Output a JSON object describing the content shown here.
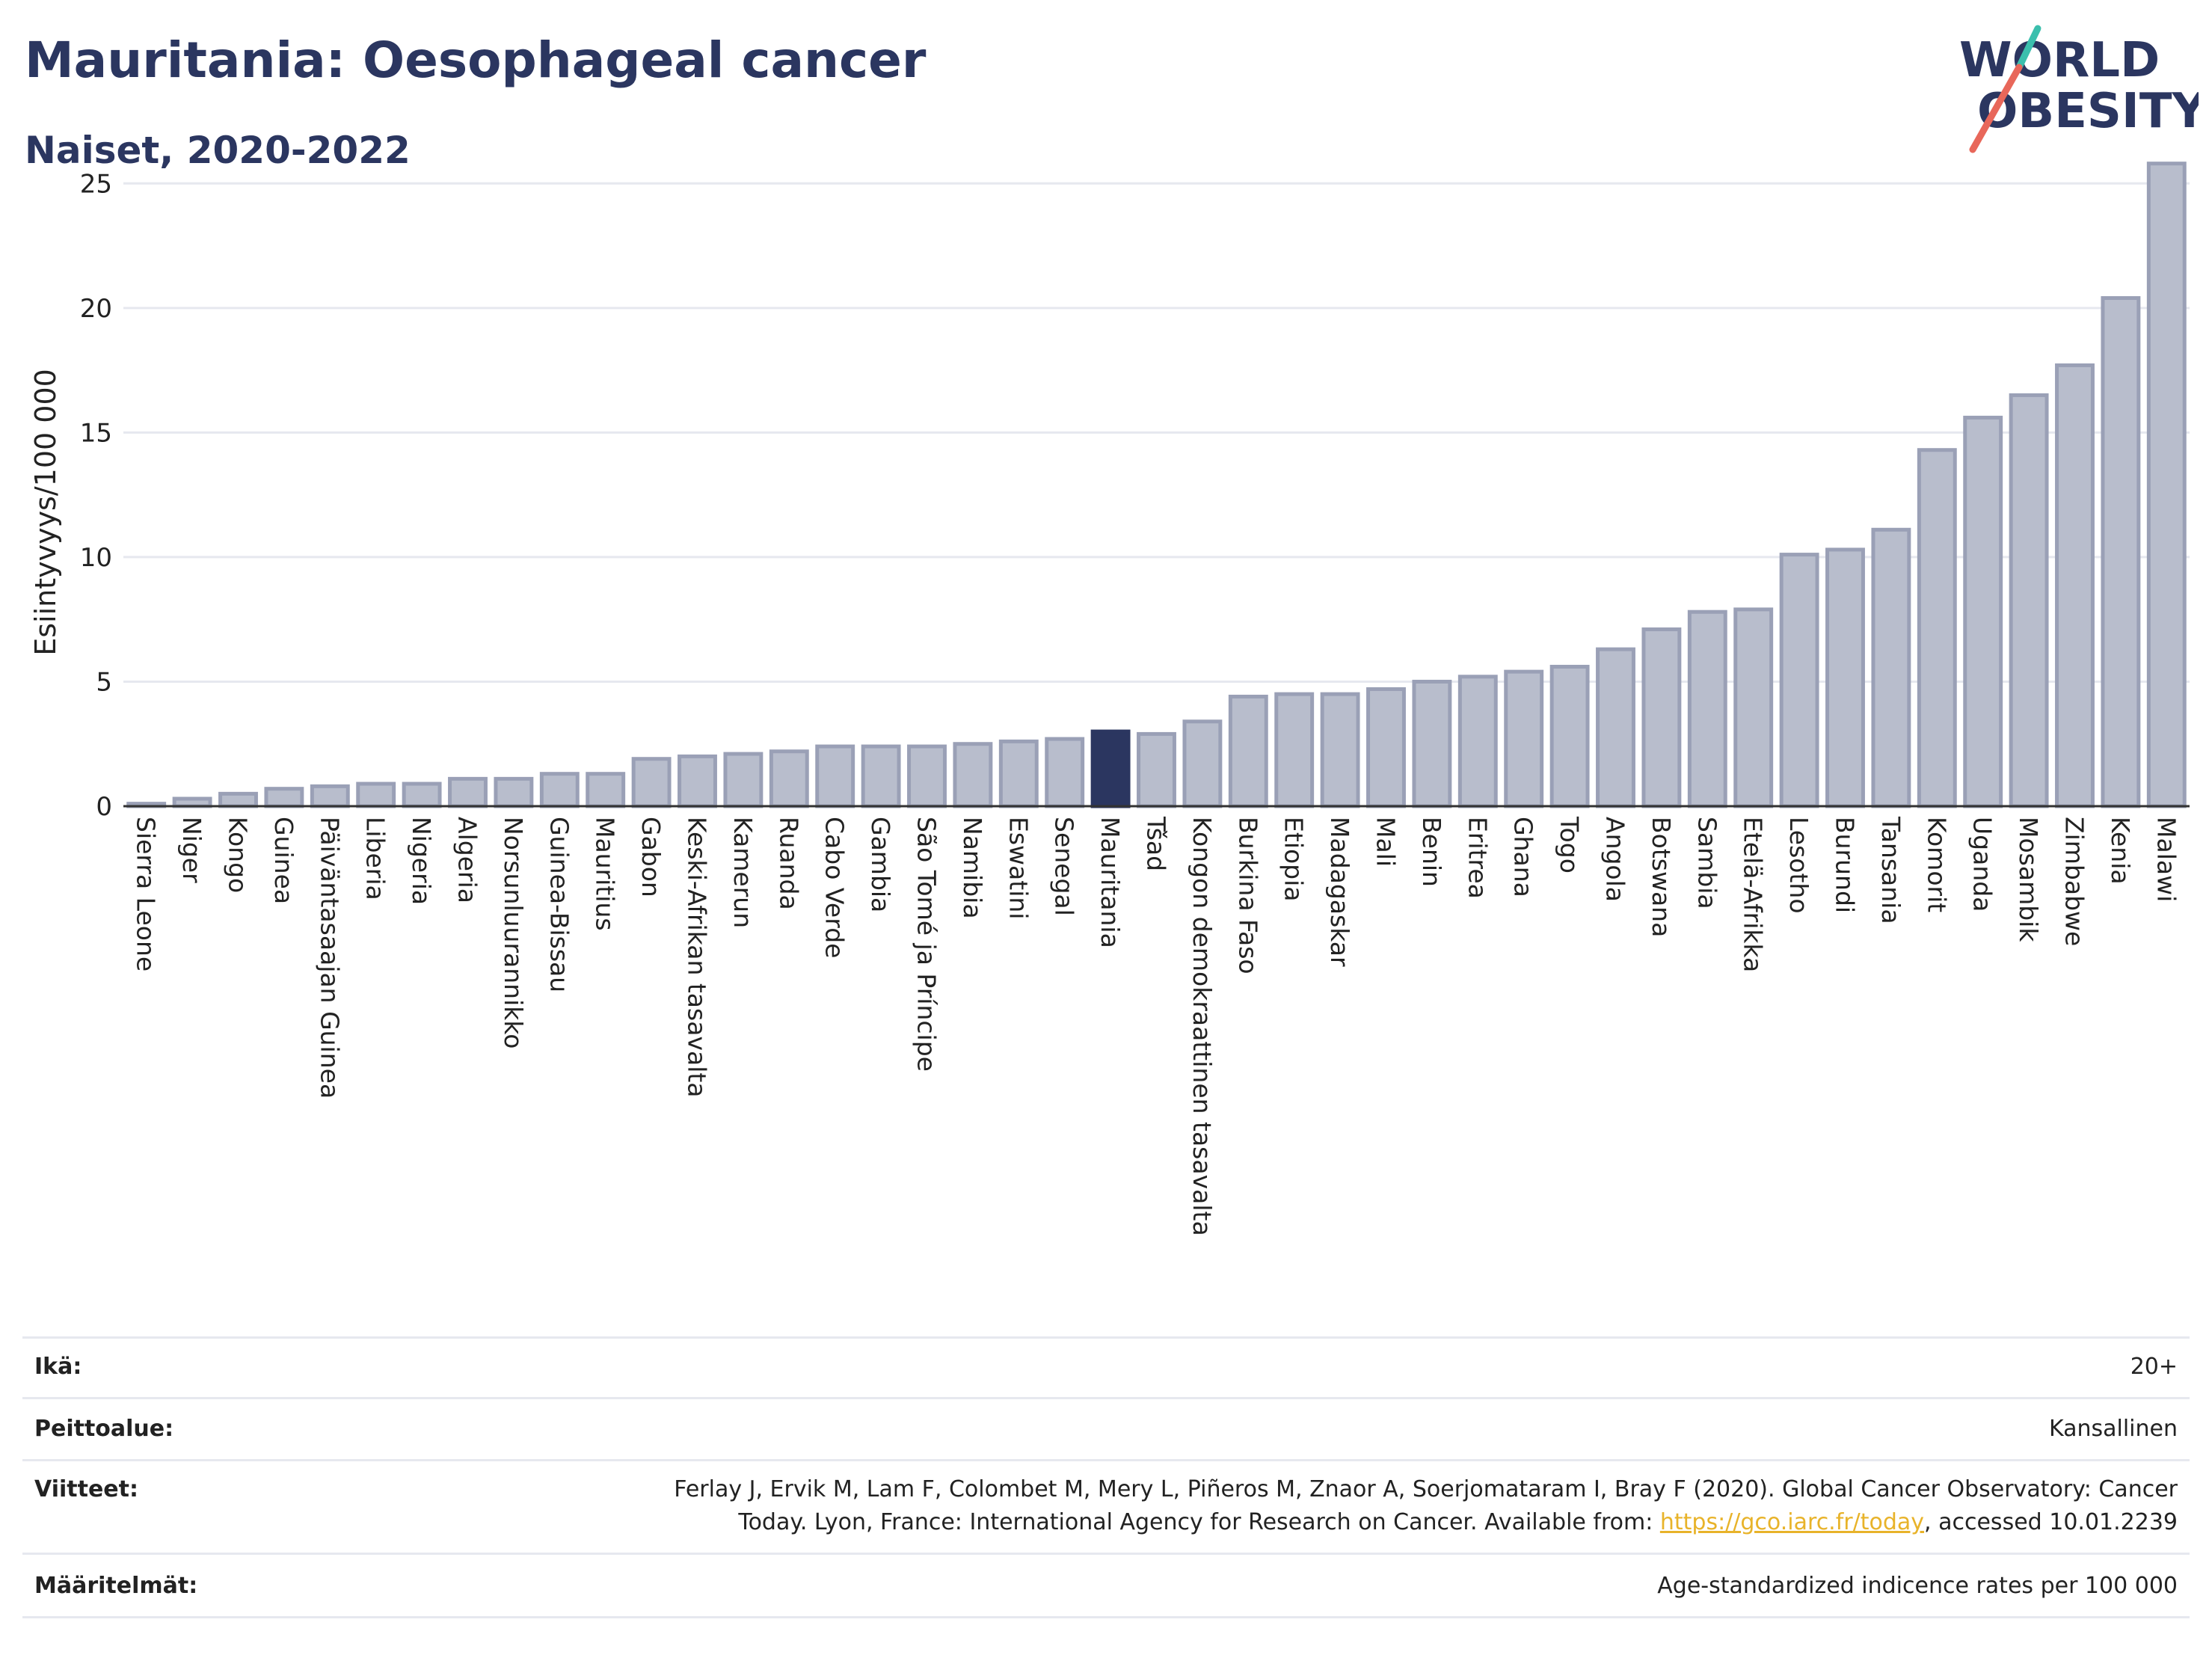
{
  "header": {
    "title": "Mauritania: Oesophageal cancer",
    "subtitle": "Naiset, 2020-2022"
  },
  "logo": {
    "line1": "WORLD",
    "line2": "OBESITY",
    "colors": {
      "text": "#2b3660",
      "slash_red": "#e8675a",
      "slash_teal": "#3bbfad"
    }
  },
  "colors": {
    "bar": "#b8bdcc",
    "bar_border": "#9aa0b6",
    "highlight": "#2b3660",
    "grid": "#e6e8ef",
    "axis": "#333333"
  },
  "chart_data": {
    "type": "bar",
    "ylabel": "Esiintyvyys/100 000",
    "xlabel": "",
    "ylim": [
      0,
      26
    ],
    "yticks": [
      0,
      5,
      10,
      15,
      20,
      25
    ],
    "grid": true,
    "highlight": "Mauritania",
    "categories": [
      "Sierra Leone",
      "Niger",
      "Kongo",
      "Guinea",
      "Päiväntasaajan Guinea",
      "Liberia",
      "Nigeria",
      "Algeria",
      "Norsunluurannikko",
      "Guinea-Bissau",
      "Mauritius",
      "Gabon",
      "Keski-Afrikan tasavalta",
      "Kamerun",
      "Ruanda",
      "Cabo Verde",
      "Gambia",
      "São Tomé ja Príncipe",
      "Namibia",
      "Eswatini",
      "Senegal",
      "Mauritania",
      "Tšad",
      "Kongon demokraattinen tasavalta",
      "Burkina Faso",
      "Etiopia",
      "Madagaskar",
      "Mali",
      "Benin",
      "Eritrea",
      "Ghana",
      "Togo",
      "Angola",
      "Botswana",
      "Sambia",
      "Etelä-Afrikka",
      "Lesotho",
      "Burundi",
      "Tansania",
      "Komorit",
      "Uganda",
      "Mosambik",
      "Zimbabwe",
      "Kenia",
      "Malawi"
    ],
    "values": [
      0.1,
      0.3,
      0.5,
      0.7,
      0.8,
      0.9,
      0.9,
      1.1,
      1.1,
      1.3,
      1.3,
      1.9,
      2.0,
      2.1,
      2.2,
      2.4,
      2.4,
      2.4,
      2.5,
      2.6,
      2.7,
      3.0,
      2.9,
      3.4,
      4.4,
      4.5,
      4.5,
      4.7,
      5.0,
      5.2,
      5.4,
      5.6,
      6.3,
      7.1,
      7.8,
      7.9,
      10.1,
      10.3,
      11.1,
      14.3,
      15.6,
      16.5,
      17.7,
      20.4,
      25.8
    ]
  },
  "meta": [
    {
      "label": "Ikä:",
      "value": "20+"
    },
    {
      "label": "Peittoalue:",
      "value": "Kansallinen"
    },
    {
      "label": "Viitteet:",
      "value_line1": "Ferlay J, Ervik M, Lam F, Colombet M, Mery L, Piñeros M, Znaor A, Soerjomataram I, Bray F (2020). Global Cancer Observatory: Cancer",
      "value_line2_pre": "Today. Lyon, France: International Agency for Research on Cancer. Available from: ",
      "link": "https://gco.iarc.fr/today",
      "value_line2_post": ", accessed 10.01.2239"
    },
    {
      "label": "Määritelmät:",
      "value": "Age-standardized indicence rates per 100 000"
    }
  ]
}
